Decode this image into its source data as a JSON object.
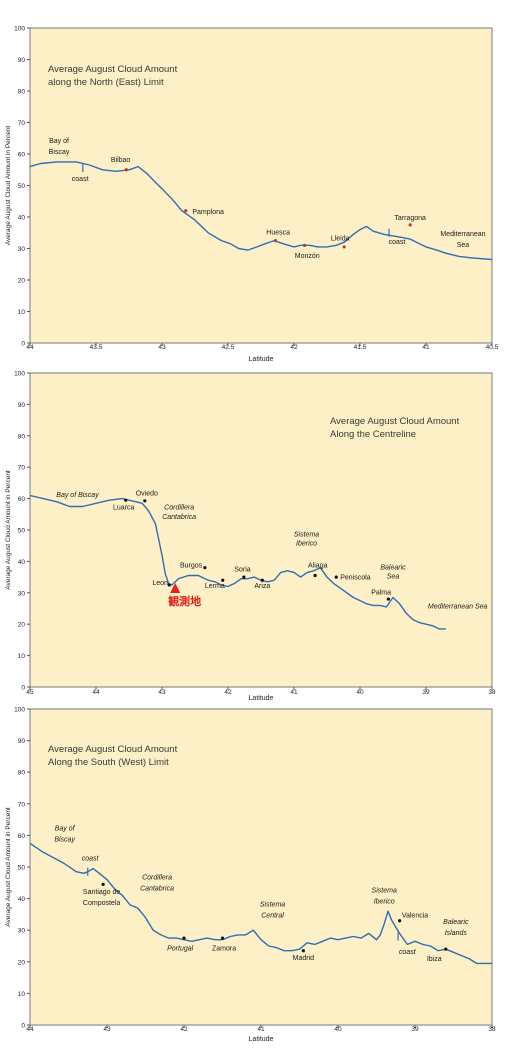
{
  "chart_data": [
    {
      "type": "line",
      "title_lines": [
        "Average August Cloud Amount",
        "along the North (East) Limit"
      ],
      "xlabel": "Latitude",
      "ylabel": "Average August Cloud Amount in Percent",
      "xlim": [
        44,
        40.5
      ],
      "ylim": [
        0,
        100
      ],
      "x_ticks": [
        44,
        43.5,
        43,
        42.5,
        42,
        41.5,
        41,
        40.5
      ],
      "x_tick_labels": [
        "44",
        "43.5",
        "43",
        "42.5",
        "42",
        "41.5",
        "41",
        "40.5"
      ],
      "y_ticks": [
        0,
        10,
        20,
        30,
        40,
        50,
        60,
        70,
        80,
        90,
        100
      ],
      "y_tick_labels": [
        "0",
        "10",
        "20",
        "30",
        "40",
        "50",
        "60",
        "70",
        "80",
        "90",
        "100"
      ],
      "grid": false,
      "background": "#fdf0c6",
      "line_color": "#2f6db5",
      "series": [
        {
          "x": [
            44.0,
            43.92,
            43.8,
            43.65,
            43.55,
            43.45,
            43.35,
            43.25,
            43.18,
            43.12,
            43.05,
            43.0,
            42.92,
            42.85,
            42.75,
            42.65,
            42.55,
            42.48,
            42.42,
            42.35,
            42.28,
            42.22,
            42.15,
            42.08,
            42.0,
            41.95,
            41.88,
            41.82,
            41.75,
            41.68,
            41.62,
            41.55,
            41.5,
            41.45,
            41.4,
            41.32,
            41.25,
            41.18,
            41.12,
            41.05,
            41.0,
            40.92,
            40.85,
            40.75,
            40.65,
            40.5
          ],
          "y": [
            56,
            57,
            57.5,
            57.5,
            56.5,
            55,
            54.5,
            55,
            56,
            54,
            51,
            49,
            45.5,
            42,
            39,
            35,
            32.5,
            31.5,
            30,
            29.5,
            30.5,
            31.5,
            32.5,
            31.5,
            30.5,
            31,
            31,
            30.5,
            30.5,
            31,
            32,
            34.5,
            36,
            37,
            35.5,
            34.5,
            34,
            33.5,
            33,
            31.5,
            30.5,
            29.5,
            28.5,
            27.5,
            27,
            26.5
          ]
        }
      ],
      "markers": [
        {
          "label": "Bilbao",
          "x": 43.27,
          "y": 55,
          "color": "#c0392b"
        },
        {
          "label": "Pamplona",
          "x": 42.82,
          "y": 42,
          "color": "#c0392b"
        },
        {
          "label": "Huesca",
          "x": 42.14,
          "y": 32.5,
          "color": "#c0392b"
        },
        {
          "label": "Monzón",
          "x": 41.92,
          "y": 31,
          "color": "#c0392b"
        },
        {
          "label": "Lleida",
          "x": 41.62,
          "y": 30.5,
          "color": "#c0392b"
        },
        {
          "label": "Tarragona",
          "x": 41.12,
          "y": 37.5,
          "color": "#c0392b"
        }
      ],
      "coast_marks": [
        {
          "x": 43.6,
          "y": 55.5
        },
        {
          "x": 41.28,
          "y": 35
        }
      ],
      "annotations": [
        {
          "text": "Bay of",
          "x": 43.78,
          "y": 63.5,
          "anchor": "middle",
          "italic": false
        },
        {
          "text": "Biscay",
          "x": 43.78,
          "y": 60,
          "anchor": "middle",
          "italic": false
        },
        {
          "text": "Bilbao",
          "x": 43.24,
          "y": 57.5,
          "anchor": "end",
          "italic": false
        },
        {
          "text": "coast",
          "x": 43.62,
          "y": 51.5,
          "anchor": "middle",
          "italic": false
        },
        {
          "text": "Pamplona",
          "x": 42.77,
          "y": 41,
          "anchor": "start",
          "italic": false
        },
        {
          "text": "Huesca",
          "x": 42.12,
          "y": 34.5,
          "anchor": "middle",
          "italic": false
        },
        {
          "text": "Monzón",
          "x": 41.9,
          "y": 27,
          "anchor": "middle",
          "italic": false
        },
        {
          "text": "Lleida",
          "x": 41.65,
          "y": 32.5,
          "anchor": "middle",
          "italic": false
        },
        {
          "text": "Tarragona",
          "x": 41.12,
          "y": 39,
          "anchor": "middle",
          "italic": false
        },
        {
          "text": "coast",
          "x": 41.22,
          "y": 31.5,
          "anchor": "middle",
          "italic": false
        },
        {
          "text": "Mediterranean",
          "x": 40.72,
          "y": 34,
          "anchor": "middle",
          "italic": false
        },
        {
          "text": "Sea",
          "x": 40.72,
          "y": 30.5,
          "anchor": "middle",
          "italic": false
        }
      ]
    },
    {
      "type": "line",
      "title_lines": [
        "Average August Cloud Amount",
        "Along the Centreline"
      ],
      "xlabel": "Latitude",
      "ylabel": "Average August Cloud Amount in Percent",
      "xlim": [
        45,
        38
      ],
      "ylim": [
        0,
        100
      ],
      "x_ticks": [
        45,
        44,
        43,
        42,
        41,
        40,
        39,
        38
      ],
      "x_tick_labels": [
        "45",
        "44",
        "43",
        "42",
        "41",
        "40",
        "39",
        "38"
      ],
      "y_ticks": [
        0,
        10,
        20,
        30,
        40,
        50,
        60,
        70,
        80,
        90,
        100
      ],
      "y_tick_labels": [
        "0",
        "10",
        "20",
        "30",
        "40",
        "50",
        "60",
        "70",
        "80",
        "90",
        "100"
      ],
      "grid": false,
      "background": "#fdf0c6",
      "line_color": "#2f6db5",
      "series": [
        {
          "x": [
            45.0,
            44.8,
            44.6,
            44.4,
            44.2,
            44.0,
            43.8,
            43.6,
            43.5,
            43.4,
            43.3,
            43.2,
            43.1,
            43.0,
            42.95,
            42.9,
            42.85,
            42.75,
            42.6,
            42.45,
            42.3,
            42.2,
            42.1,
            42.0,
            41.9,
            41.8,
            41.7,
            41.6,
            41.5,
            41.4,
            41.3,
            41.2,
            41.1,
            41.0,
            40.9,
            40.8,
            40.7,
            40.6,
            40.5,
            40.4,
            40.3,
            40.2,
            40.1,
            40.0,
            39.9,
            39.8,
            39.7,
            39.6,
            39.5,
            39.45,
            39.4,
            39.3,
            39.2,
            39.1,
            39.0,
            38.9,
            38.8,
            38.7
          ],
          "y": [
            61,
            60,
            59,
            57.5,
            57.5,
            58.5,
            59.5,
            60,
            59.5,
            59,
            58.5,
            56,
            52,
            42,
            36,
            33,
            32.5,
            34.5,
            35.5,
            35.5,
            34,
            33.5,
            32.5,
            32,
            33,
            34.5,
            34.5,
            35,
            34,
            33.5,
            34,
            36.5,
            37,
            36.5,
            35,
            36.5,
            37,
            38,
            35,
            33,
            31.5,
            30,
            28.5,
            27.5,
            26.5,
            26,
            26,
            25.5,
            28.5,
            27.5,
            26.5,
            23.5,
            21.5,
            20.5,
            20,
            19.5,
            18.5,
            18.5
          ]
        }
      ],
      "markers": [
        {
          "label": "Luarca",
          "x": 43.55,
          "y": 59.5,
          "color": "#111111"
        },
        {
          "label": "Oviedo",
          "x": 43.26,
          "y": 59.3,
          "color": "#111111"
        },
        {
          "label": "Leon",
          "x": 42.89,
          "y": 32.5,
          "color": "#111111"
        },
        {
          "label": "Burgos",
          "x": 42.35,
          "y": 38,
          "color": "#111111"
        },
        {
          "label": "Lerma",
          "x": 42.08,
          "y": 34,
          "color": "#111111"
        },
        {
          "label": "Soria",
          "x": 41.76,
          "y": 35,
          "color": "#111111"
        },
        {
          "label": "Ariza",
          "x": 41.48,
          "y": 34,
          "color": "#111111"
        },
        {
          "label": "Aliaga",
          "x": 40.68,
          "y": 35.5,
          "color": "#111111"
        },
        {
          "label": "Peniscola",
          "x": 40.36,
          "y": 35,
          "color": "#111111"
        },
        {
          "label": "Palma",
          "x": 39.57,
          "y": 28,
          "color": "#111111"
        }
      ],
      "observation_site": {
        "label": "観測地",
        "x": 42.8,
        "color": "#e0231b"
      },
      "annotations": [
        {
          "text": "Bay of Biscay",
          "x": 44.28,
          "y": 60.5,
          "anchor": "middle",
          "italic": true
        },
        {
          "text": "Oviedo",
          "x": 43.23,
          "y": 61,
          "anchor": "middle",
          "italic": false
        },
        {
          "text": "Luarca",
          "x": 43.58,
          "y": 56.5,
          "anchor": "middle",
          "italic": false
        },
        {
          "text": "Cordillera",
          "x": 42.74,
          "y": 56.5,
          "anchor": "middle",
          "italic": true
        },
        {
          "text": "Cantabrica",
          "x": 42.74,
          "y": 53.5,
          "anchor": "middle",
          "italic": true
        },
        {
          "text": "Burgos",
          "x": 42.56,
          "y": 38,
          "anchor": "middle",
          "italic": false
        },
        {
          "text": "Leon",
          "x": 42.91,
          "y": 32.5,
          "anchor": "end",
          "italic": false
        },
        {
          "text": "Lerma",
          "x": 42.2,
          "y": 31.5,
          "anchor": "middle",
          "italic": false
        },
        {
          "text": "Soria",
          "x": 41.78,
          "y": 36.8,
          "anchor": "middle",
          "italic": false
        },
        {
          "text": "Ariza",
          "x": 41.48,
          "y": 31.5,
          "anchor": "middle",
          "italic": false
        },
        {
          "text": "Sistema",
          "x": 40.81,
          "y": 48,
          "anchor": "middle",
          "italic": true
        },
        {
          "text": "Iberico",
          "x": 40.81,
          "y": 45,
          "anchor": "middle",
          "italic": true
        },
        {
          "text": "Aliaga",
          "x": 40.64,
          "y": 38,
          "anchor": "middle",
          "italic": false
        },
        {
          "text": "Peniscola",
          "x": 40.3,
          "y": 34.2,
          "anchor": "start",
          "italic": false
        },
        {
          "text": "Balearic",
          "x": 39.5,
          "y": 37.5,
          "anchor": "middle",
          "italic": true
        },
        {
          "text": "Sea",
          "x": 39.5,
          "y": 34.5,
          "anchor": "middle",
          "italic": true
        },
        {
          "text": "Palma",
          "x": 39.68,
          "y": 29.5,
          "anchor": "middle",
          "italic": false
        },
        {
          "text": "Mediterranean Sea",
          "x": 38.52,
          "y": 25,
          "anchor": "middle",
          "italic": true
        }
      ]
    },
    {
      "type": "line",
      "title_lines": [
        "Average August Cloud Amount",
        "Along the South (West) Limit"
      ],
      "xlabel": "Latitude",
      "ylabel": "Average August Cloud Amount in Percent",
      "xlim": [
        44,
        38
      ],
      "ylim": [
        0,
        100
      ],
      "x_ticks": [
        44,
        43,
        42,
        41,
        40,
        39,
        38
      ],
      "x_tick_labels": [
        "44",
        "43",
        "42",
        "41",
        "40",
        "39",
        "38"
      ],
      "y_ticks": [
        0,
        10,
        20,
        30,
        40,
        50,
        60,
        70,
        80,
        90,
        100
      ],
      "y_tick_labels": [
        "0",
        "10",
        "20",
        "30",
        "40",
        "50",
        "60",
        "70",
        "80",
        "90",
        "100"
      ],
      "grid": false,
      "background": "#fdf0c6",
      "line_color": "#2f6db5",
      "series": [
        {
          "x": [
            44.0,
            43.85,
            43.7,
            43.55,
            43.4,
            43.3,
            43.25,
            43.18,
            43.1,
            43.0,
            42.9,
            42.8,
            42.7,
            42.6,
            42.5,
            42.4,
            42.3,
            42.2,
            42.1,
            42.0,
            41.9,
            41.8,
            41.7,
            41.6,
            41.5,
            41.4,
            41.3,
            41.2,
            41.1,
            41.0,
            40.9,
            40.8,
            40.7,
            40.6,
            40.5,
            40.45,
            40.4,
            40.3,
            40.2,
            40.1,
            40.0,
            39.9,
            39.8,
            39.7,
            39.6,
            39.5,
            39.45,
            39.4,
            39.35,
            39.3,
            39.2,
            39.1,
            39.0,
            38.9,
            38.8,
            38.7,
            38.6,
            38.5,
            38.4,
            38.3,
            38.2,
            38.1,
            38.0
          ],
          "y": [
            57.5,
            55,
            53,
            51,
            48.5,
            48,
            48.5,
            49.5,
            48,
            46,
            43,
            41,
            38,
            37,
            34,
            30,
            28.5,
            27.5,
            27.5,
            27,
            26.5,
            27,
            27.5,
            27,
            27,
            28,
            28.5,
            28.5,
            30,
            27,
            25,
            24.5,
            23.5,
            23.5,
            24,
            25,
            26,
            25.5,
            26.5,
            27.5,
            27,
            27.5,
            28,
            27.5,
            29,
            27,
            28.5,
            32,
            36,
            33,
            29,
            25.5,
            26.5,
            25.5,
            25,
            23.5,
            24,
            23,
            22,
            21,
            19.5,
            19.5,
            19.5
          ]
        }
      ],
      "markers": [
        {
          "label": "Santiago de Compostela",
          "x": 43.05,
          "y": 44.5,
          "color": "#111111"
        },
        {
          "label": "Portugal",
          "x": 42.0,
          "y": 27.5,
          "color": "#111111"
        },
        {
          "label": "Zamora",
          "x": 41.5,
          "y": 27.5,
          "color": "#111111"
        },
        {
          "label": "Madrid",
          "x": 40.45,
          "y": 23.5,
          "color": "#111111"
        },
        {
          "label": "Valencia",
          "x": 39.2,
          "y": 33,
          "color": "#111111"
        },
        {
          "label": "Ibiza",
          "x": 38.6,
          "y": 24,
          "color": "#111111"
        }
      ],
      "coast_marks": [
        {
          "x": 43.25,
          "y": 48.5
        },
        {
          "x": 39.22,
          "y": 28
        }
      ],
      "annotations": [
        {
          "text": "Bay of",
          "x": 43.55,
          "y": 61.5,
          "anchor": "middle",
          "italic": true
        },
        {
          "text": "Biscay",
          "x": 43.55,
          "y": 58,
          "anchor": "middle",
          "italic": true
        },
        {
          "text": "coast",
          "x": 43.22,
          "y": 52,
          "anchor": "middle",
          "italic": true
        },
        {
          "text": "Santiago de",
          "x": 43.07,
          "y": 41.5,
          "anchor": "middle",
          "italic": false
        },
        {
          "text": "Compostela",
          "x": 43.07,
          "y": 38,
          "anchor": "middle",
          "italic": false
        },
        {
          "text": "Cordillera",
          "x": 42.35,
          "y": 46,
          "anchor": "middle",
          "italic": true
        },
        {
          "text": "Cantabrica",
          "x": 42.35,
          "y": 42.5,
          "anchor": "middle",
          "italic": true
        },
        {
          "text": "Portugal",
          "x": 42.05,
          "y": 23.5,
          "anchor": "middle",
          "italic": true
        },
        {
          "text": "Zamora",
          "x": 41.48,
          "y": 23.5,
          "anchor": "middle",
          "italic": false
        },
        {
          "text": "Sistema",
          "x": 40.85,
          "y": 37.5,
          "anchor": "middle",
          "italic": true
        },
        {
          "text": "Central",
          "x": 40.85,
          "y": 34,
          "anchor": "middle",
          "italic": true
        },
        {
          "text": "Madrid",
          "x": 40.45,
          "y": 20.5,
          "anchor": "middle",
          "italic": false
        },
        {
          "text": "Sistema",
          "x": 39.4,
          "y": 42,
          "anchor": "middle",
          "italic": true
        },
        {
          "text": "Iberico",
          "x": 39.4,
          "y": 38.5,
          "anchor": "middle",
          "italic": true
        },
        {
          "text": "Valencia",
          "x": 39.0,
          "y": 34,
          "anchor": "middle",
          "italic": false
        },
        {
          "text": "coast",
          "x": 39.1,
          "y": 22.5,
          "anchor": "middle",
          "italic": true
        },
        {
          "text": "Balearic",
          "x": 38.47,
          "y": 32,
          "anchor": "middle",
          "italic": true
        },
        {
          "text": "Islands",
          "x": 38.47,
          "y": 28.5,
          "anchor": "middle",
          "italic": true
        },
        {
          "text": "Ibiza",
          "x": 38.75,
          "y": 20.3,
          "anchor": "middle",
          "italic": false
        }
      ]
    }
  ]
}
